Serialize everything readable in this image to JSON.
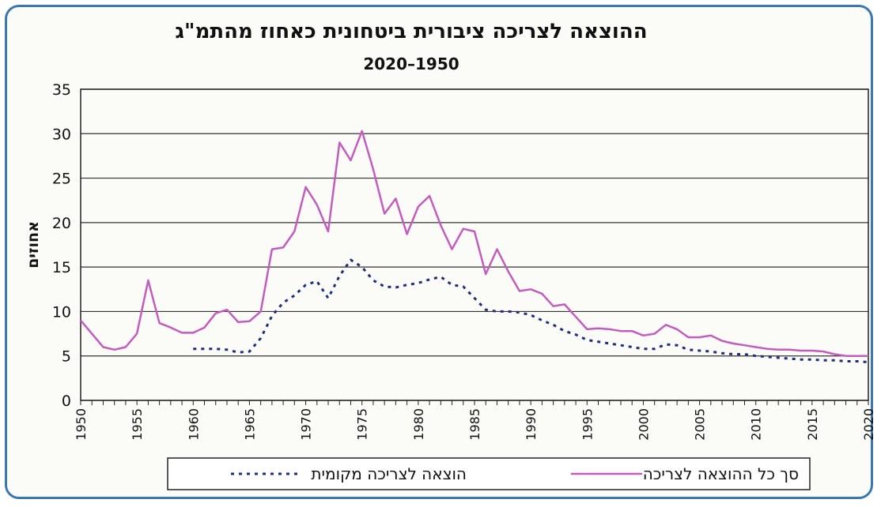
{
  "chart_data": {
    "type": "line",
    "title": "ההוצאה לצריכה ציבורית ביטחונית כאחוז מהתמ\"ג",
    "subtitle": "2020–1950",
    "xlabel": "",
    "ylabel": "אחוזים",
    "xlim": [
      1950,
      2020
    ],
    "ylim": [
      0,
      35
    ],
    "y_ticks": [
      "0",
      "5",
      "10",
      "15",
      "20",
      "25",
      "30",
      "35"
    ],
    "x_ticks": [
      "1950",
      "1955",
      "1960",
      "1965",
      "1970",
      "1975",
      "1980",
      "1985",
      "1990",
      "1995",
      "2000",
      "2005",
      "2010",
      "2015",
      "2020"
    ],
    "grid": true,
    "legend_position": "bottom",
    "series": [
      {
        "name": "סך כל ההוצאה לצריכה",
        "color": "#c45cc0",
        "style": "solid",
        "x": [
          1950,
          1951,
          1952,
          1953,
          1954,
          1955,
          1956,
          1957,
          1958,
          1959,
          1960,
          1961,
          1962,
          1963,
          1964,
          1965,
          1966,
          1967,
          1968,
          1969,
          1970,
          1971,
          1972,
          1973,
          1974,
          1975,
          1976,
          1977,
          1978,
          1979,
          1980,
          1981,
          1982,
          1983,
          1984,
          1985,
          1986,
          1987,
          1988,
          1989,
          1990,
          1991,
          1992,
          1993,
          1994,
          1995,
          1996,
          1997,
          1998,
          1999,
          2000,
          2001,
          2002,
          2003,
          2004,
          2005,
          2006,
          2007,
          2008,
          2009,
          2010,
          2011,
          2012,
          2013,
          2014,
          2015,
          2016,
          2017,
          2018,
          2019,
          2020
        ],
        "values": [
          9.0,
          7.5,
          6.0,
          5.7,
          6.0,
          7.5,
          13.5,
          8.7,
          8.2,
          7.6,
          7.6,
          8.2,
          9.8,
          10.2,
          8.8,
          8.9,
          10.0,
          17.0,
          17.2,
          19.0,
          24.0,
          22.0,
          19.0,
          29.0,
          27.0,
          30.3,
          26.0,
          21.0,
          22.7,
          18.7,
          21.8,
          23.0,
          19.7,
          17.0,
          19.3,
          19.0,
          14.2,
          17.0,
          14.5,
          12.3,
          12.5,
          12.0,
          10.6,
          10.8,
          9.4,
          8.0,
          8.1,
          8.0,
          7.8,
          7.8,
          7.3,
          7.5,
          8.5,
          8.0,
          7.1,
          7.1,
          7.3,
          6.7,
          6.4,
          6.2,
          6.0,
          5.8,
          5.7,
          5.7,
          5.6,
          5.6,
          5.5,
          5.2,
          5.0,
          5.0,
          5.0
        ]
      },
      {
        "name": "הוצאה לצריכה מקומית",
        "color": "#1f2f7a",
        "style": "dotted",
        "x": [
          1960,
          1961,
          1962,
          1963,
          1964,
          1965,
          1966,
          1967,
          1968,
          1969,
          1970,
          1971,
          1972,
          1973,
          1974,
          1975,
          1976,
          1977,
          1978,
          1979,
          1980,
          1981,
          1982,
          1983,
          1984,
          1985,
          1986,
          1987,
          1988,
          1989,
          1990,
          1991,
          1992,
          1993,
          1994,
          1995,
          1996,
          1997,
          1998,
          1999,
          2000,
          2001,
          2002,
          2003,
          2004,
          2005,
          2006,
          2007,
          2008,
          2009,
          2010,
          2011,
          2012,
          2013,
          2014,
          2015,
          2016,
          2017,
          2018,
          2019,
          2020
        ],
        "values": [
          5.8,
          5.8,
          5.8,
          5.7,
          5.4,
          5.5,
          7.0,
          9.5,
          11.0,
          11.8,
          13.0,
          13.4,
          11.5,
          14.0,
          15.8,
          15.0,
          13.5,
          12.8,
          12.7,
          13.0,
          13.2,
          13.6,
          13.9,
          13.0,
          12.8,
          11.5,
          10.2,
          10.0,
          10.0,
          9.9,
          9.6,
          9.0,
          8.5,
          7.8,
          7.4,
          6.8,
          6.6,
          6.4,
          6.2,
          6.0,
          5.8,
          5.8,
          6.3,
          6.2,
          5.7,
          5.6,
          5.5,
          5.3,
          5.2,
          5.2,
          5.0,
          4.9,
          4.8,
          4.7,
          4.6,
          4.6,
          4.5,
          4.5,
          4.4,
          4.4,
          4.3
        ]
      }
    ]
  }
}
